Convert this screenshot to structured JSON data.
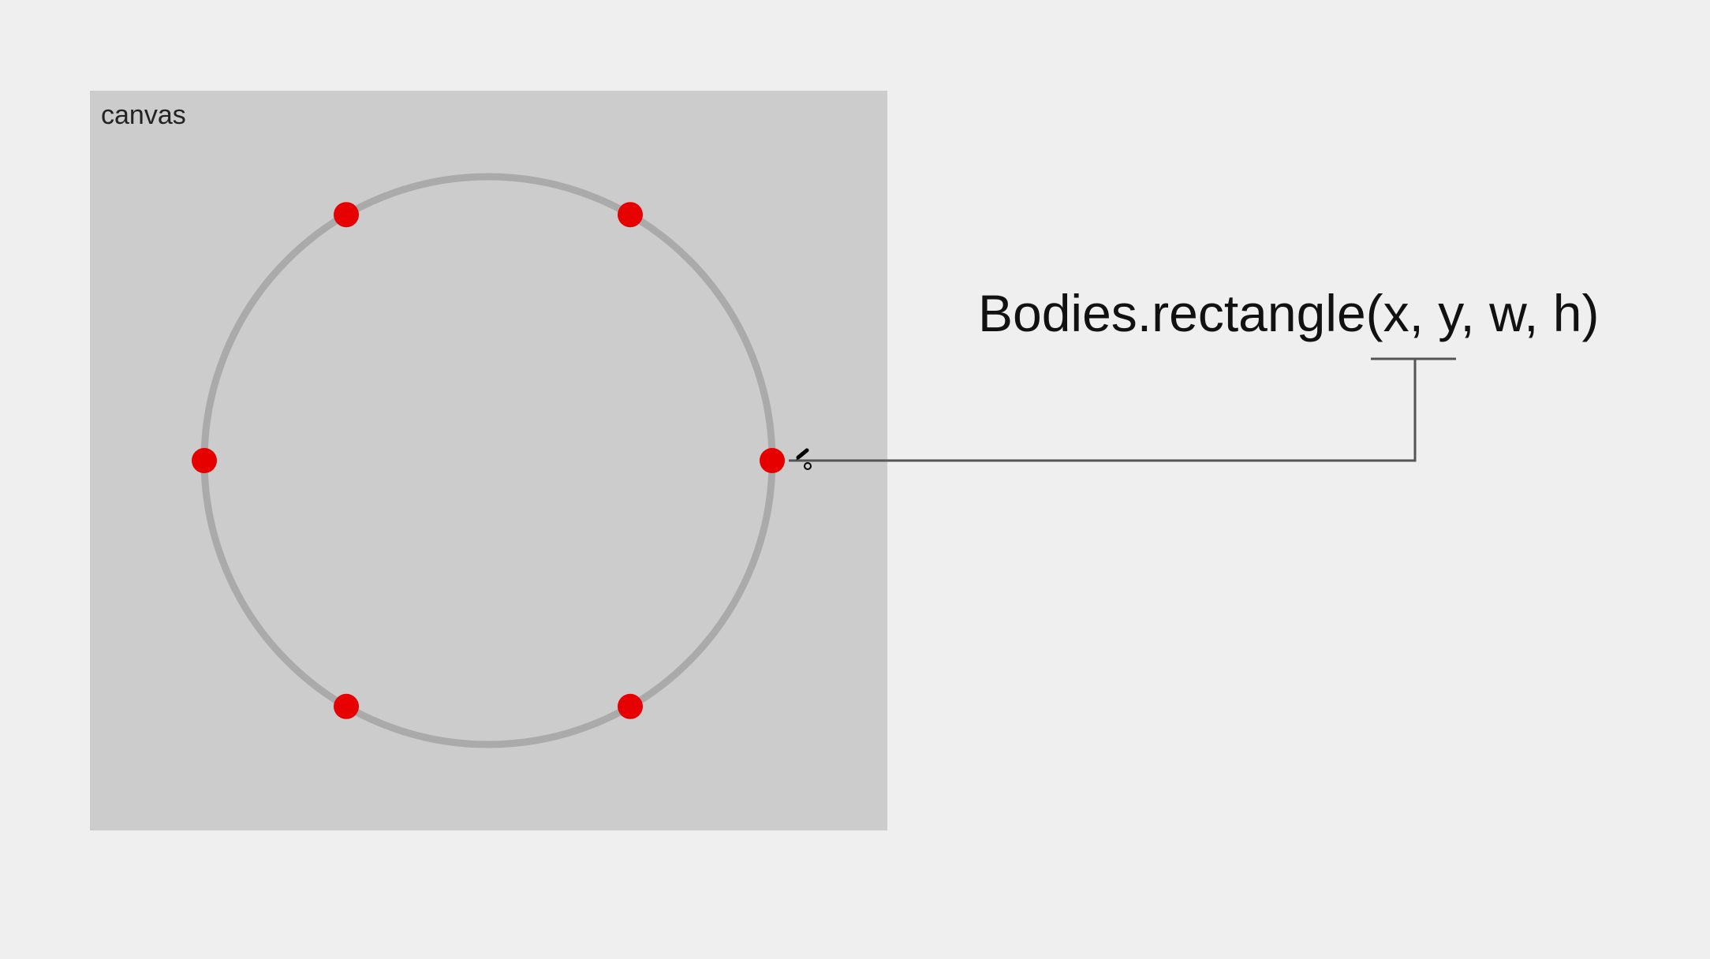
{
  "canvas": {
    "label": "canvas",
    "background": "#cccccc"
  },
  "ring": {
    "color": "#aaaaaa",
    "point_count": 6,
    "point_color": "#e60000",
    "point_angles_deg": [
      0,
      60,
      120,
      180,
      240,
      300
    ]
  },
  "code": {
    "text": "Bodies.rectangle(x, y, w, h)",
    "color": "#111111"
  },
  "connector": {
    "color": "#555555"
  },
  "cursor": {
    "icon": "pen-cursor-icon"
  }
}
